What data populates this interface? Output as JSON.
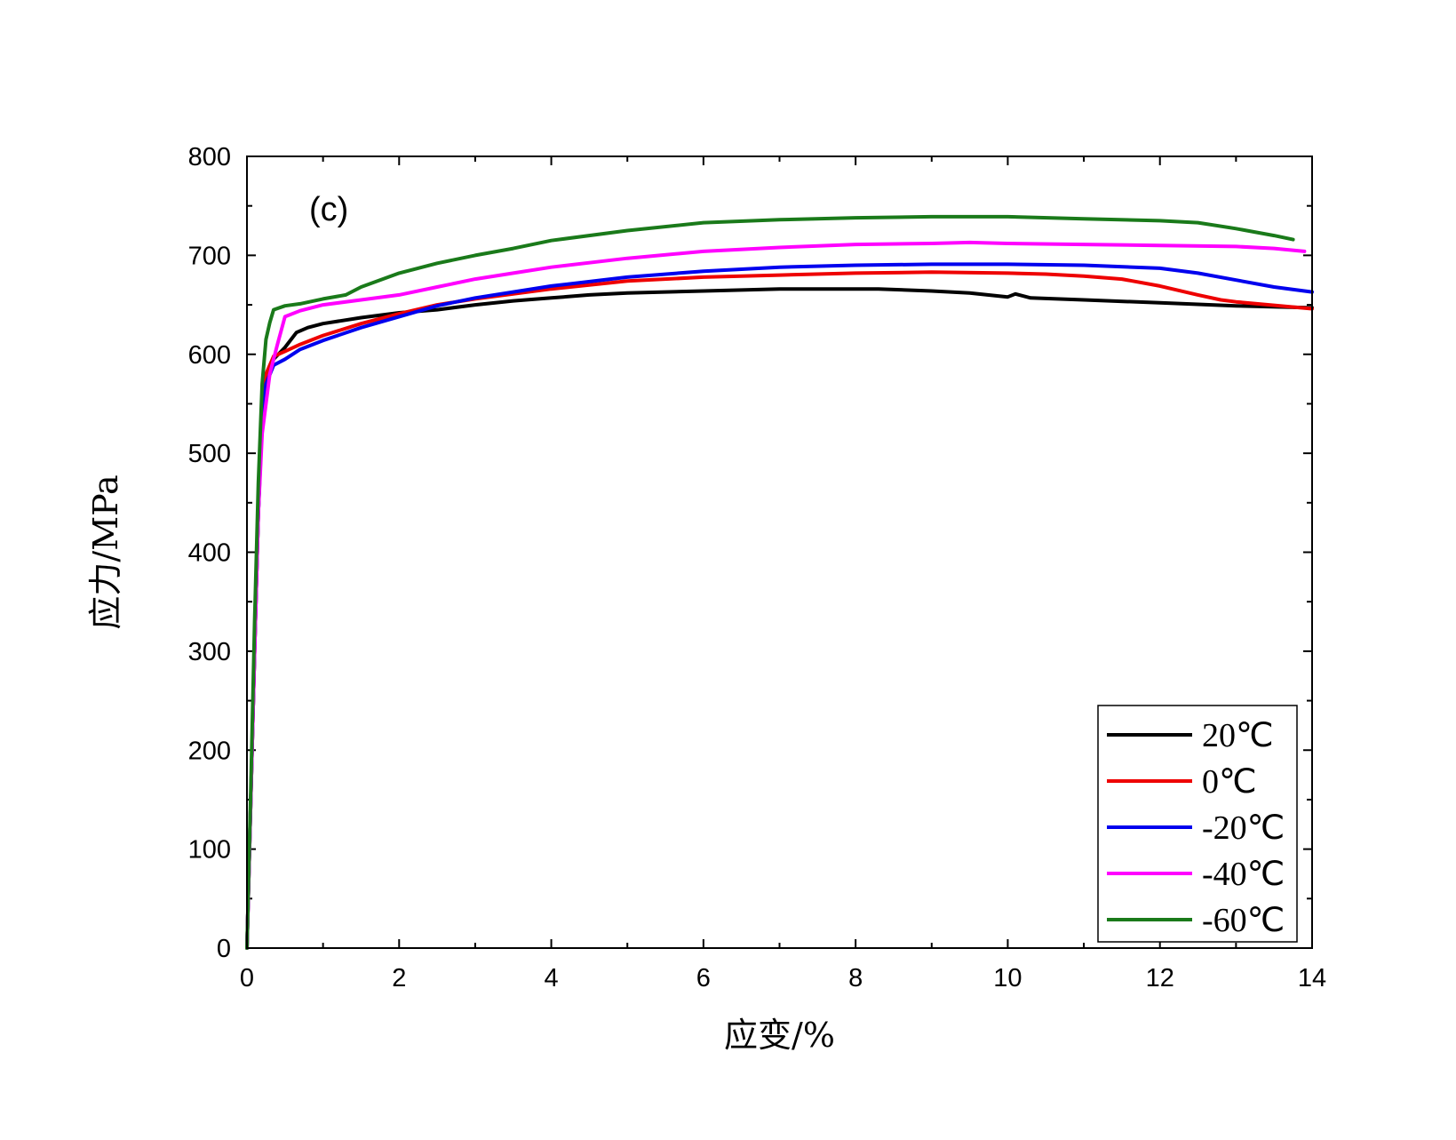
{
  "chart_data": {
    "type": "line",
    "panel_label": "(c)",
    "xlabel": "应变/%",
    "ylabel": "应力/MPa",
    "xlim": [
      0,
      14
    ],
    "ylim": [
      0,
      800
    ],
    "xticks": [
      0,
      2,
      4,
      6,
      8,
      10,
      12,
      14
    ],
    "yticks": [
      0,
      100,
      200,
      300,
      400,
      500,
      600,
      700,
      800
    ],
    "grid": false,
    "legend_position": "bottom-right",
    "series": [
      {
        "name": "20℃",
        "color": "#000000",
        "points": [
          [
            0,
            0
          ],
          [
            0.05,
            150
          ],
          [
            0.1,
            300
          ],
          [
            0.15,
            440
          ],
          [
            0.2,
            540
          ],
          [
            0.25,
            580
          ],
          [
            0.35,
            595
          ],
          [
            0.5,
            607
          ],
          [
            0.65,
            622
          ],
          [
            0.8,
            627
          ],
          [
            1,
            631
          ],
          [
            1.5,
            637
          ],
          [
            2,
            642
          ],
          [
            2.5,
            645
          ],
          [
            3,
            650
          ],
          [
            3.5,
            654
          ],
          [
            4,
            657
          ],
          [
            4.5,
            660
          ],
          [
            5,
            662
          ],
          [
            6,
            664
          ],
          [
            7,
            666
          ],
          [
            8,
            666
          ],
          [
            8.3,
            666
          ],
          [
            9,
            664
          ],
          [
            9.5,
            662
          ],
          [
            10,
            658
          ],
          [
            10.1,
            661
          ],
          [
            10.3,
            657
          ],
          [
            11,
            655
          ],
          [
            12,
            652
          ],
          [
            13,
            649
          ],
          [
            14,
            647
          ]
        ]
      },
      {
        "name": "0℃",
        "color": "#ee0000",
        "points": [
          [
            0,
            0
          ],
          [
            0.05,
            150
          ],
          [
            0.1,
            300
          ],
          [
            0.15,
            440
          ],
          [
            0.2,
            545
          ],
          [
            0.25,
            580
          ],
          [
            0.35,
            598
          ],
          [
            0.5,
            603
          ],
          [
            0.7,
            610
          ],
          [
            1,
            619
          ],
          [
            1.5,
            631
          ],
          [
            2,
            641
          ],
          [
            2.5,
            650
          ],
          [
            3,
            656
          ],
          [
            3.5,
            661
          ],
          [
            4,
            666
          ],
          [
            5,
            674
          ],
          [
            6,
            678
          ],
          [
            7,
            680
          ],
          [
            8,
            682
          ],
          [
            9,
            683
          ],
          [
            10,
            682
          ],
          [
            10.5,
            681
          ],
          [
            11,
            679
          ],
          [
            11.5,
            676
          ],
          [
            12,
            669
          ],
          [
            12.5,
            660
          ],
          [
            12.8,
            655
          ],
          [
            13,
            653
          ],
          [
            14,
            646
          ]
        ]
      },
      {
        "name": "-20℃",
        "color": "#0000ee",
        "points": [
          [
            0,
            0
          ],
          [
            0.05,
            150
          ],
          [
            0.1,
            300
          ],
          [
            0.15,
            440
          ],
          [
            0.2,
            530
          ],
          [
            0.25,
            570
          ],
          [
            0.35,
            589
          ],
          [
            0.5,
            595
          ],
          [
            0.7,
            605
          ],
          [
            1,
            614
          ],
          [
            1.5,
            627
          ],
          [
            2,
            638
          ],
          [
            2.5,
            649
          ],
          [
            3,
            657
          ],
          [
            3.5,
            663
          ],
          [
            4,
            669
          ],
          [
            5,
            678
          ],
          [
            6,
            684
          ],
          [
            7,
            688
          ],
          [
            8,
            690
          ],
          [
            9,
            691
          ],
          [
            10,
            691
          ],
          [
            11,
            690
          ],
          [
            12,
            687
          ],
          [
            12.5,
            682
          ],
          [
            13,
            675
          ],
          [
            13.5,
            668
          ],
          [
            14,
            663
          ]
        ]
      },
      {
        "name": "-40℃",
        "color": "#ff00ff",
        "points": [
          [
            0,
            0
          ],
          [
            0.05,
            150
          ],
          [
            0.1,
            300
          ],
          [
            0.15,
            440
          ],
          [
            0.2,
            520
          ],
          [
            0.3,
            580
          ],
          [
            0.4,
            610
          ],
          [
            0.5,
            638
          ],
          [
            0.7,
            644
          ],
          [
            1,
            650
          ],
          [
            1.5,
            655
          ],
          [
            2,
            660
          ],
          [
            2.5,
            668
          ],
          [
            3,
            676
          ],
          [
            3.5,
            682
          ],
          [
            4,
            688
          ],
          [
            5,
            697
          ],
          [
            6,
            704
          ],
          [
            7,
            708
          ],
          [
            8,
            711
          ],
          [
            9,
            712
          ],
          [
            9.5,
            713
          ],
          [
            10,
            712
          ],
          [
            11,
            711
          ],
          [
            12,
            710
          ],
          [
            13,
            709
          ],
          [
            13.5,
            707
          ],
          [
            13.9,
            704
          ]
        ]
      },
      {
        "name": "-60℃",
        "color": "#1a7a1a",
        "points": [
          [
            0,
            0
          ],
          [
            0.05,
            160
          ],
          [
            0.1,
            330
          ],
          [
            0.15,
            470
          ],
          [
            0.2,
            570
          ],
          [
            0.25,
            615
          ],
          [
            0.3,
            632
          ],
          [
            0.35,
            645
          ],
          [
            0.5,
            649
          ],
          [
            0.7,
            651
          ],
          [
            1,
            656
          ],
          [
            1.3,
            660
          ],
          [
            1.5,
            668
          ],
          [
            2,
            682
          ],
          [
            2.5,
            692
          ],
          [
            3,
            700
          ],
          [
            3.5,
            707
          ],
          [
            4,
            715
          ],
          [
            5,
            725
          ],
          [
            6,
            733
          ],
          [
            7,
            736
          ],
          [
            8,
            738
          ],
          [
            9,
            739
          ],
          [
            10,
            739
          ],
          [
            11,
            737
          ],
          [
            12,
            735
          ],
          [
            12.5,
            733
          ],
          [
            13,
            727
          ],
          [
            13.5,
            720
          ],
          [
            13.75,
            716
          ]
        ]
      }
    ]
  }
}
